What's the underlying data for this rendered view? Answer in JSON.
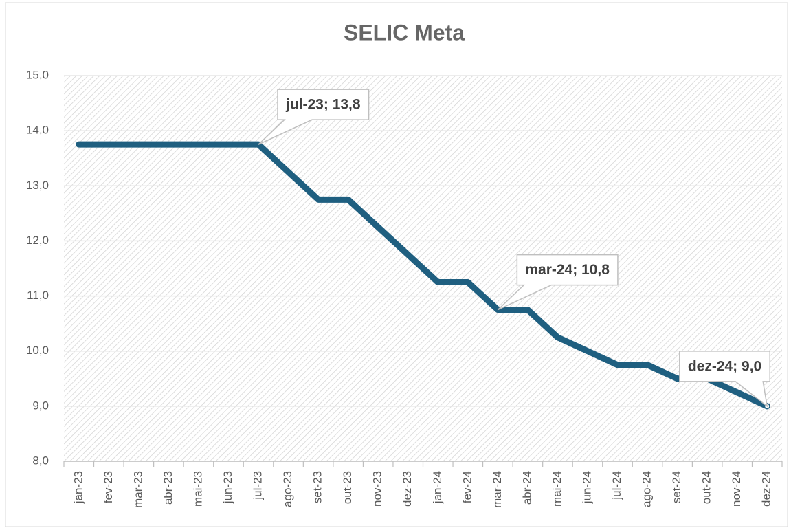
{
  "chart_data": {
    "type": "line",
    "title": "SELIC Meta",
    "categories": [
      "jan-23",
      "fev-23",
      "mar-23",
      "abr-23",
      "mai-23",
      "jun-23",
      "jul-23",
      "ago-23",
      "set-23",
      "out-23",
      "nov-23",
      "dez-23",
      "jan-24",
      "fev-24",
      "mar-24",
      "abr-24",
      "mai-24",
      "jun-24",
      "jul-24",
      "ago-24",
      "set-24",
      "out-24",
      "nov-24",
      "dez-24"
    ],
    "values": [
      13.75,
      13.75,
      13.75,
      13.75,
      13.75,
      13.75,
      13.75,
      13.25,
      12.75,
      12.75,
      12.25,
      11.75,
      11.25,
      11.25,
      10.75,
      10.75,
      10.25,
      10.0,
      9.75,
      9.75,
      9.5,
      9.5,
      9.25,
      9.0
    ],
    "value_labels": [
      null,
      null,
      null,
      null,
      null,
      null,
      "jul-23; 13,8",
      null,
      null,
      null,
      null,
      null,
      null,
      null,
      "mar-24; 10,8",
      null,
      null,
      null,
      null,
      null,
      null,
      null,
      null,
      "dez-24; 9,0"
    ],
    "color": "#1f5f80",
    "ylim": [
      8,
      15
    ],
    "yticks": [
      {
        "value": 8,
        "label": "8,0"
      },
      {
        "value": 9,
        "label": "9,0"
      },
      {
        "value": 10,
        "label": "10,0"
      },
      {
        "value": 11,
        "label": "11,0"
      },
      {
        "value": 12,
        "label": "12,0"
      },
      {
        "value": 13,
        "label": "13,0"
      },
      {
        "value": 14,
        "label": "14,0"
      },
      {
        "value": 15,
        "label": "15,0"
      }
    ],
    "grid": true
  }
}
